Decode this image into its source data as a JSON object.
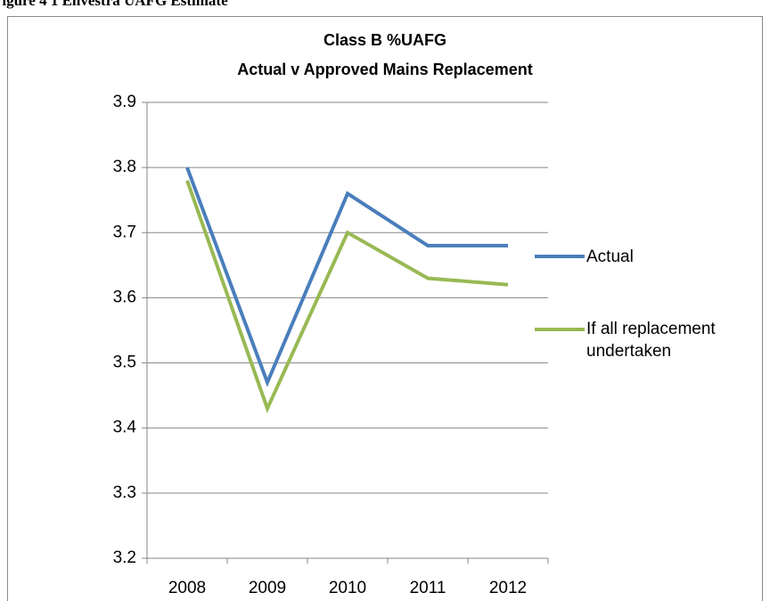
{
  "caption": "Figure 4 1 Envestra UAFG Estimate",
  "chart_data": {
    "type": "line",
    "title": [
      "Class B %UAFG",
      "Actual v Approved Mains Replacement"
    ],
    "categories": [
      "2008",
      "2009",
      "2010",
      "2011",
      "2012"
    ],
    "series": [
      {
        "name": "Actual",
        "color": "#4a7ebb",
        "values": [
          3.8,
          3.47,
          3.76,
          3.68,
          3.68
        ]
      },
      {
        "name": "If all replacement undertaken",
        "color": "#98b954",
        "values": [
          3.78,
          3.43,
          3.7,
          3.63,
          3.62
        ]
      }
    ],
    "ylim": [
      3.2,
      3.9
    ],
    "yticks": [
      3.2,
      3.3,
      3.4,
      3.5,
      3.6,
      3.7,
      3.8,
      3.9
    ],
    "grid": true,
    "legend": "right"
  }
}
